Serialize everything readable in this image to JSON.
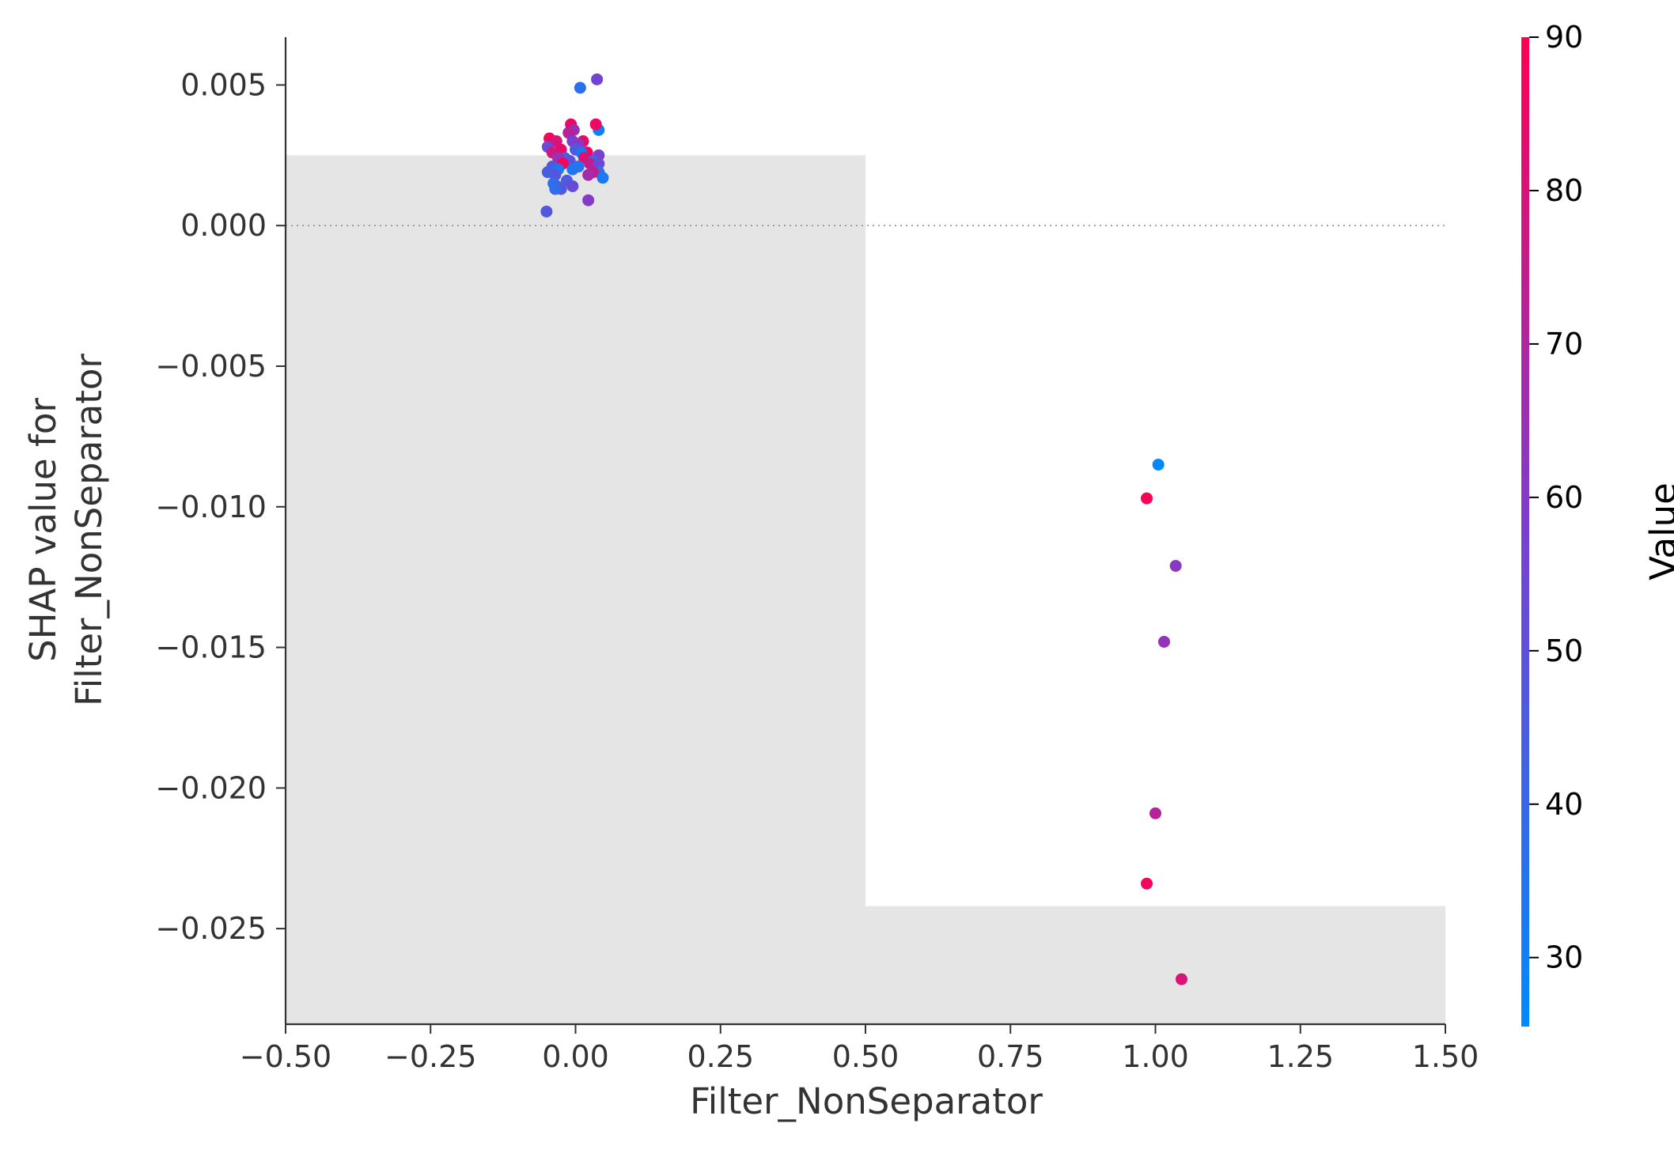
{
  "chart_data": {
    "type": "scatter",
    "xlabel": "Filter_NonSeparator",
    "ylabel": "SHAP value for\nFilter_NonSeparator",
    "xlim": [
      -0.5,
      1.5
    ],
    "ylim": [
      -0.0284,
      0.0067
    ],
    "xticks": [
      -0.5,
      -0.25,
      0.0,
      0.25,
      0.5,
      0.75,
      1.0,
      1.25,
      1.5
    ],
    "xtick_labels": [
      "−0.50",
      "−0.25",
      "0.00",
      "0.25",
      "0.50",
      "0.75",
      "1.00",
      "1.25",
      "1.50"
    ],
    "yticks": [
      0.005,
      0.0,
      -0.005,
      -0.01,
      -0.015,
      -0.02,
      -0.025
    ],
    "ytick_labels": [
      "0.005",
      "0.000",
      "−0.005",
      "−0.010",
      "−0.015",
      "−0.020",
      "−0.025"
    ],
    "zero_line": true,
    "histogram_bars": [
      {
        "x0": -0.5,
        "x1": 0.5,
        "height": 0.0025
      },
      {
        "x0": 0.5,
        "x1": 1.5,
        "height": -0.0242
      }
    ],
    "colorbar": {
      "label": "Value",
      "range": [
        25.5,
        90
      ],
      "ticks": [
        30,
        40,
        50,
        60,
        70,
        80,
        90
      ],
      "tick_labels": [
        "30",
        "40",
        "50",
        "60",
        "70",
        "80",
        "90"
      ],
      "color_low": "#008afb",
      "color_mid": "#7a3fd0",
      "color_high": "#ff0052"
    },
    "points": [
      {
        "x": 1.005,
        "y": -0.0085,
        "c": 27
      },
      {
        "x": 0.985,
        "y": -0.0097,
        "c": 88
      },
      {
        "x": 1.035,
        "y": -0.0121,
        "c": 62
      },
      {
        "x": 1.015,
        "y": -0.0148,
        "c": 64
      },
      {
        "x": 1.0,
        "y": -0.0209,
        "c": 72
      },
      {
        "x": 0.985,
        "y": -0.0234,
        "c": 86
      },
      {
        "x": 1.045,
        "y": -0.0268,
        "c": 80
      },
      {
        "x": 0.008,
        "y": 0.0049,
        "c": 37
      },
      {
        "x": 0.037,
        "y": 0.0052,
        "c": 55
      },
      {
        "x": 0.04,
        "y": 0.0034,
        "c": 29
      },
      {
        "x": 0.035,
        "y": 0.0036,
        "c": 86
      },
      {
        "x": -0.008,
        "y": 0.0036,
        "c": 85
      },
      {
        "x": -0.003,
        "y": 0.0034,
        "c": 66
      },
      {
        "x": -0.012,
        "y": 0.0033,
        "c": 72
      },
      {
        "x": -0.045,
        "y": 0.0031,
        "c": 88
      },
      {
        "x": -0.033,
        "y": 0.003,
        "c": 80
      },
      {
        "x": 0.013,
        "y": 0.003,
        "c": 85
      },
      {
        "x": -0.005,
        "y": 0.003,
        "c": 58
      },
      {
        "x": 0.005,
        "y": 0.0029,
        "c": 62
      },
      {
        "x": -0.048,
        "y": 0.0028,
        "c": 54
      },
      {
        "x": -0.025,
        "y": 0.0027,
        "c": 84
      },
      {
        "x": 0.0,
        "y": 0.0027,
        "c": 47
      },
      {
        "x": 0.02,
        "y": 0.0026,
        "c": 88
      },
      {
        "x": -0.04,
        "y": 0.0026,
        "c": 78
      },
      {
        "x": 0.01,
        "y": 0.0026,
        "c": 35
      },
      {
        "x": 0.04,
        "y": 0.0025,
        "c": 58
      },
      {
        "x": -0.018,
        "y": 0.0024,
        "c": 44
      },
      {
        "x": 0.015,
        "y": 0.0024,
        "c": 82
      },
      {
        "x": -0.03,
        "y": 0.0024,
        "c": 65
      },
      {
        "x": 0.03,
        "y": 0.0023,
        "c": 40
      },
      {
        "x": -0.01,
        "y": 0.0023,
        "c": 50
      },
      {
        "x": 0.025,
        "y": 0.0022,
        "c": 75
      },
      {
        "x": -0.022,
        "y": 0.0022,
        "c": 88
      },
      {
        "x": 0.04,
        "y": 0.0022,
        "c": 54
      },
      {
        "x": 0.005,
        "y": 0.0021,
        "c": 36
      },
      {
        "x": -0.04,
        "y": 0.0021,
        "c": 48
      },
      {
        "x": -0.005,
        "y": 0.002,
        "c": 34
      },
      {
        "x": -0.03,
        "y": 0.002,
        "c": 32
      },
      {
        "x": -0.048,
        "y": 0.0019,
        "c": 44
      },
      {
        "x": 0.04,
        "y": 0.0019,
        "c": 38
      },
      {
        "x": 0.03,
        "y": 0.0019,
        "c": 75
      },
      {
        "x": -0.035,
        "y": 0.0018,
        "c": 48
      },
      {
        "x": 0.022,
        "y": 0.0018,
        "c": 68
      },
      {
        "x": 0.047,
        "y": 0.0017,
        "c": 33
      },
      {
        "x": -0.015,
        "y": 0.0016,
        "c": 46
      },
      {
        "x": -0.038,
        "y": 0.0015,
        "c": 36
      },
      {
        "x": -0.032,
        "y": 0.0014,
        "c": 42
      },
      {
        "x": -0.005,
        "y": 0.0014,
        "c": 52
      },
      {
        "x": -0.025,
        "y": 0.0013,
        "c": 48
      },
      {
        "x": -0.035,
        "y": 0.0013,
        "c": 38
      },
      {
        "x": 0.022,
        "y": 0.0009,
        "c": 60
      },
      {
        "x": -0.05,
        "y": 0.0005,
        "c": 47
      }
    ]
  }
}
